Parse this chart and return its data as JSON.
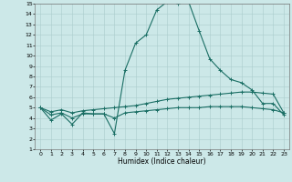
{
  "xlabel": "Humidex (Indice chaleur)",
  "xlim": [
    -0.5,
    23.5
  ],
  "ylim": [
    1,
    15
  ],
  "xticks": [
    0,
    1,
    2,
    3,
    4,
    5,
    6,
    7,
    8,
    9,
    10,
    11,
    12,
    13,
    14,
    15,
    16,
    17,
    18,
    19,
    20,
    21,
    22,
    23
  ],
  "yticks": [
    1,
    2,
    3,
    4,
    5,
    6,
    7,
    8,
    9,
    10,
    11,
    12,
    13,
    14,
    15
  ],
  "bg_color": "#cce8e8",
  "line_color": "#1a6e64",
  "grid_color": "#aacccc",
  "line1_x": [
    0,
    1,
    2,
    3,
    4,
    5,
    6,
    7,
    8,
    9,
    10,
    11,
    12,
    13,
    14,
    15,
    16,
    17,
    18,
    19,
    20,
    21,
    22,
    23
  ],
  "line1_y": [
    5.0,
    3.8,
    4.4,
    3.4,
    4.5,
    4.4,
    4.4,
    2.5,
    8.6,
    11.2,
    12.0,
    14.4,
    15.2,
    15.0,
    15.2,
    12.4,
    9.7,
    8.6,
    7.7,
    7.4,
    6.7,
    5.4,
    5.4,
    4.3
  ],
  "line2_x": [
    0,
    1,
    2,
    3,
    4,
    5,
    6,
    7,
    8,
    9,
    10,
    11,
    12,
    13,
    14,
    15,
    16,
    17,
    18,
    19,
    20,
    21,
    22,
    23
  ],
  "line2_y": [
    5.0,
    4.6,
    4.8,
    4.5,
    4.7,
    4.8,
    4.9,
    5.0,
    5.1,
    5.2,
    5.4,
    5.6,
    5.8,
    5.9,
    6.0,
    6.1,
    6.2,
    6.3,
    6.4,
    6.5,
    6.5,
    6.4,
    6.3,
    4.5
  ],
  "line3_x": [
    0,
    1,
    2,
    3,
    4,
    5,
    6,
    7,
    8,
    9,
    10,
    11,
    12,
    13,
    14,
    15,
    16,
    17,
    18,
    19,
    20,
    21,
    22,
    23
  ],
  "line3_y": [
    5.0,
    4.3,
    4.5,
    4.0,
    4.4,
    4.4,
    4.4,
    4.0,
    4.5,
    4.6,
    4.7,
    4.8,
    4.9,
    5.0,
    5.0,
    5.0,
    5.1,
    5.1,
    5.1,
    5.1,
    5.0,
    4.9,
    4.8,
    4.5
  ]
}
